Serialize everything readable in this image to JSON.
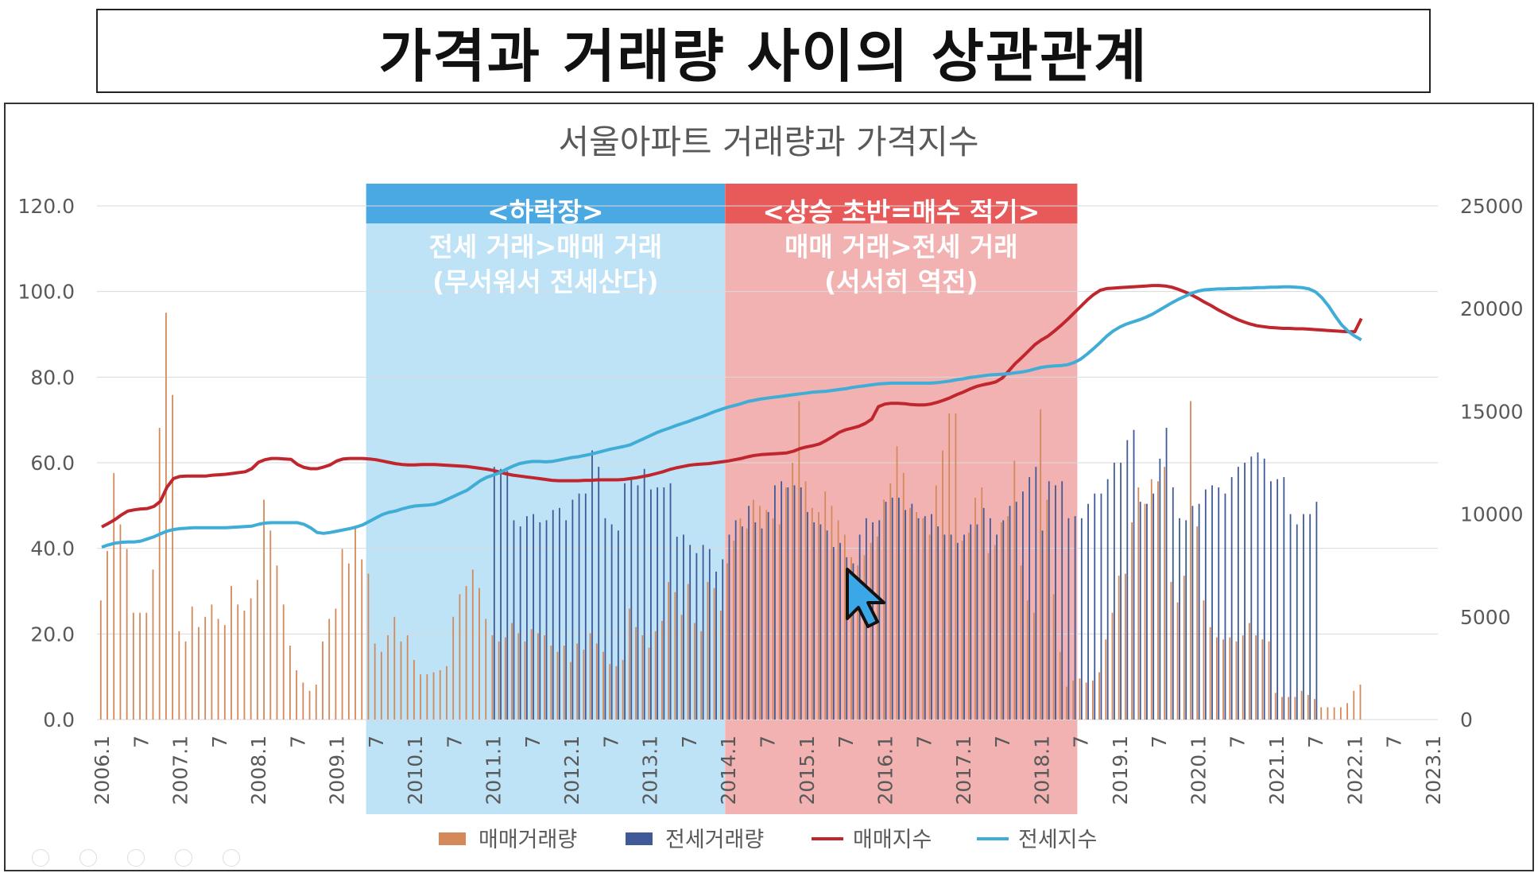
{
  "header": {
    "title": "가격과 거래량 사이의 상관관계"
  },
  "colors": {
    "sale_volume": "#D4895A",
    "jeonse_volume": "#3F5A96",
    "sale_index": "#C0262D",
    "jeonse_index": "#40ADD6",
    "falling_band_header": "#4AA8E2",
    "falling_band_body": "#BEE2F6",
    "rising_band_header": "#E85A5A",
    "rising_band_body": "#F3B2B2"
  },
  "icons": {
    "cursor": "mouse-pointer-icon"
  },
  "chart_data": {
    "type": "bar+line",
    "title": "서울아파트 거래량과 가격지수",
    "y_left": {
      "ylim": [
        0,
        120
      ],
      "ticks": [
        "0.0",
        "20.0",
        "40.0",
        "60.0",
        "80.0",
        "100.0",
        "120.0"
      ]
    },
    "y_right": {
      "ylim": [
        0,
        25000
      ],
      "ticks": [
        "0",
        "5000",
        "10000",
        "15000",
        "20000",
        "25000"
      ]
    },
    "x_start": "2006.1",
    "x_end": "2023.1",
    "x_tick_labels": [
      "2006.1",
      "7",
      "2007.1",
      "7",
      "2008.1",
      "7",
      "2009.1",
      "7",
      "2010.1",
      "7",
      "2011.1",
      "7",
      "2012.1",
      "7",
      "2013.1",
      "7",
      "2014.1",
      "7",
      "2015.1",
      "7",
      "2016.1",
      "7",
      "2017.1",
      "7",
      "2018.1",
      "7",
      "2019.1",
      "7",
      "2020.1",
      "7",
      "2021.1",
      "7",
      "2022.1",
      "7",
      "2023.1"
    ],
    "annotations": [
      {
        "id": "falling",
        "from": "2009.6",
        "to": "2013.12",
        "lines": [
          "<하락장>",
          "전세 거래>매매 거래",
          "(무서워서 전세산다)"
        ]
      },
      {
        "id": "rising",
        "from": "2014.1",
        "to": "2018.6",
        "lines": [
          "<상승 초반=매수 적기>",
          "매매 거래>전세 거래",
          "(서서히 역전)"
        ]
      }
    ],
    "legend": [
      "매매거래량",
      "전세거래량",
      "매매지수",
      "전세지수"
    ],
    "legend_position": "bottom",
    "series": [
      {
        "name": "매매거래량",
        "type": "bar",
        "axis": "right",
        "values": [
          5800,
          8200,
          12000,
          9500,
          8300,
          5200,
          5200,
          5200,
          7300,
          14200,
          19800,
          15800,
          4300,
          3800,
          5500,
          4500,
          5000,
          5600,
          4900,
          4600,
          6500,
          5600,
          5300,
          5900,
          6800,
          10700,
          9200,
          7500,
          5600,
          3600,
          2400,
          1800,
          1400,
          1700,
          3800,
          4900,
          5400,
          8300,
          7600,
          9400,
          7800,
          7100,
          3700,
          3300,
          4100,
          5000,
          3800,
          4100,
          2900,
          2200,
          2200,
          2300,
          2400,
          2600,
          5000,
          6100,
          6500,
          7300,
          6400,
          4900,
          4100,
          3800,
          4000,
          4700,
          4200,
          3800,
          4400,
          4200,
          4100,
          3600,
          3300,
          3600,
          2800,
          3700,
          3400,
          4200,
          3700,
          3300,
          2700,
          2600,
          2900,
          5400,
          4500,
          4100,
          3500,
          4300,
          4800,
          6700,
          6200,
          5100,
          6600,
          4700,
          4300,
          6700,
          6400,
          5300,
          7600,
          8700,
          9800,
          9300,
          10700,
          10400,
          10200,
          9800,
          9500,
          11300,
          12500,
          15500,
          11600,
          10300,
          10100,
          11100,
          10400,
          9700,
          9000,
          7900,
          7500,
          8000,
          8600,
          8900,
          10700,
          11500,
          13300,
          12000,
          10300,
          10100,
          9800,
          9000,
          11400,
          13100,
          14900,
          14900,
          8700,
          9100,
          10800,
          11300,
          8100,
          8500,
          9600,
          9900,
          12600,
          7500,
          5800,
          5200,
          15100,
          10700,
          6100,
          3300,
          1600,
          1900,
          2000,
          1800,
          1900,
          2300,
          3900,
          5200,
          7000,
          7100,
          9600,
          11300,
          10500,
          11700,
          11600,
          12300,
          6700,
          5700,
          7000,
          15500,
          9400,
          5800,
          4500,
          4000,
          3900,
          4000,
          3800,
          4100,
          4700,
          4100,
          3900,
          3800,
          1300,
          1100,
          1100,
          1100,
          1400,
          1200,
          1000,
          600,
          600,
          600,
          600,
          800,
          1400,
          1700
        ]
      },
      {
        "name": "전세거래량",
        "type": "bar",
        "axis": "right",
        "values": [
          0,
          0,
          0,
          0,
          0,
          0,
          0,
          0,
          0,
          0,
          0,
          0,
          0,
          0,
          0,
          0,
          0,
          0,
          0,
          0,
          0,
          0,
          0,
          0,
          0,
          0,
          0,
          0,
          0,
          0,
          0,
          0,
          0,
          0,
          0,
          0,
          0,
          0,
          0,
          0,
          0,
          0,
          0,
          0,
          0,
          0,
          0,
          0,
          0,
          0,
          0,
          0,
          0,
          0,
          0,
          0,
          0,
          0,
          0,
          0,
          12300,
          12200,
          12100,
          9700,
          9400,
          9900,
          10000,
          9600,
          9700,
          10200,
          10300,
          9700,
          10700,
          11000,
          11000,
          13100,
          12300,
          9800,
          9500,
          9200,
          11500,
          11700,
          11400,
          12200,
          11200,
          11300,
          11300,
          11500,
          8900,
          9000,
          8500,
          8100,
          8500,
          8300,
          7200,
          7800,
          9000,
          9700,
          9400,
          10400,
          9600,
          9300,
          10100,
          11400,
          11600,
          11300,
          11400,
          11300,
          10100,
          9600,
          9500,
          9200,
          8400,
          8600,
          7900,
          7600,
          9000,
          9800,
          9600,
          9700,
          10600,
          10800,
          10800,
          10200,
          10500,
          9800,
          9900,
          10000,
          9400,
          9000,
          9000,
          8600,
          9000,
          9500,
          9500,
          10300,
          9800,
          9000,
          9700,
          10400,
          10600,
          11100,
          11800,
          12300,
          9200,
          11600,
          11400,
          11600,
          9800,
          9900,
          9800,
          10500,
          11000,
          11000,
          11700,
          12500,
          12500,
          13600,
          14100,
          10600,
          10500,
          11000,
          12700,
          14200,
          11300,
          9800,
          9700,
          10400,
          10500,
          11200,
          11400,
          11300,
          11000,
          11800,
          12300,
          12500,
          12800,
          13000,
          12700,
          11600,
          11700,
          11800,
          10000,
          9500,
          10000,
          10000,
          10600
        ]
      },
      {
        "name": "매매지수",
        "type": "line",
        "axis": "left",
        "values": [
          45,
          45.8,
          46.7,
          47.8,
          48.7,
          49,
          49.2,
          49.3,
          49.8,
          51,
          54.3,
          56.3,
          56.8,
          56.9,
          56.9,
          56.9,
          56.9,
          57.1,
          57.2,
          57.3,
          57.5,
          57.7,
          57.9,
          58.6,
          60.1,
          60.7,
          61,
          61,
          60.9,
          60.8,
          59.6,
          58.9,
          58.6,
          58.6,
          59,
          59.5,
          60.4,
          60.9,
          61,
          61,
          61,
          60.9,
          60.7,
          60.4,
          60.1,
          59.8,
          59.6,
          59.5,
          59.5,
          59.6,
          59.6,
          59.6,
          59.5,
          59.4,
          59.3,
          59.2,
          59.1,
          58.9,
          58.7,
          58.5,
          58.2,
          57.8,
          57.4,
          57.1,
          56.9,
          56.7,
          56.5,
          56.3,
          56.1,
          55.9,
          55.8,
          55.8,
          55.8,
          55.8,
          55.9,
          55.9,
          56,
          56,
          56,
          56,
          56.1,
          56.3,
          56.5,
          56.8,
          57.1,
          57.5,
          57.9,
          58.4,
          58.8,
          59.1,
          59.4,
          59.6,
          59.7,
          59.8,
          60,
          60.2,
          60.4,
          60.7,
          61,
          61.4,
          61.7,
          61.9,
          62,
          62.1,
          62.2,
          62.3,
          62.7,
          63.3,
          63.7,
          64,
          64.4,
          65.2,
          66.1,
          67.1,
          67.7,
          68.1,
          68.5,
          69.2,
          70.2,
          73.1,
          73.7,
          73.9,
          73.9,
          73.8,
          73.6,
          73.5,
          73.5,
          73.7,
          74.1,
          74.6,
          75.2,
          75.9,
          76.5,
          77.2,
          77.8,
          78.2,
          78.5,
          78.9,
          79.8,
          81.5,
          83.2,
          84.6,
          86.1,
          87.6,
          88.7,
          89.6,
          90.8,
          92.1,
          93.5,
          95,
          96.5,
          98,
          99.3,
          100.3,
          100.7,
          100.8,
          100.9,
          101,
          101.1,
          101.2,
          101.3,
          101.4,
          101.4,
          101.3,
          101,
          100.5,
          99.9,
          99.2,
          98.4,
          97.5,
          96.7,
          95.8,
          95,
          94.2,
          93.5,
          92.9,
          92.4,
          92,
          91.8,
          91.6,
          91.5,
          91.4,
          91.4,
          91.3,
          91.3,
          91.2,
          91.1,
          91,
          90.9,
          90.8,
          90.7,
          90.6,
          90.6,
          93.7
        ]
      },
      {
        "name": "전세지수",
        "type": "line",
        "axis": "left",
        "values": [
          40.3,
          40.8,
          41.2,
          41.4,
          41.5,
          41.5,
          41.7,
          42.2,
          42.7,
          43.4,
          44,
          44.4,
          44.6,
          44.7,
          44.8,
          44.8,
          44.8,
          44.8,
          44.8,
          44.8,
          44.9,
          45,
          45.1,
          45.2,
          45.6,
          45.9,
          46,
          46,
          46,
          46,
          46,
          45.6,
          44.8,
          43.7,
          43.5,
          43.7,
          44,
          44.3,
          44.6,
          45,
          45.5,
          46.3,
          47.1,
          47.9,
          48.4,
          48.7,
          49.2,
          49.6,
          49.9,
          50,
          50.1,
          50.3,
          50.8,
          51.5,
          52.2,
          52.9,
          53.6,
          54.7,
          55.8,
          56.6,
          57.1,
          57.7,
          58.5,
          59.2,
          59.8,
          60.1,
          60.3,
          60.3,
          60.2,
          60.3,
          60.6,
          60.9,
          61.2,
          61.4,
          61.7,
          62,
          62.4,
          62.8,
          63.2,
          63.5,
          63.8,
          64.2,
          64.9,
          65.6,
          66.3,
          67,
          67.6,
          68.1,
          68.7,
          69.2,
          69.7,
          70.3,
          70.8,
          71.4,
          72,
          72.5,
          73,
          73.4,
          73.8,
          74.3,
          74.6,
          74.9,
          75.1,
          75.3,
          75.5,
          75.7,
          75.9,
          76.1,
          76.3,
          76.5,
          76.6,
          76.7,
          76.9,
          77.1,
          77.3,
          77.6,
          77.8,
          78,
          78.2,
          78.4,
          78.5,
          78.6,
          78.6,
          78.6,
          78.6,
          78.6,
          78.6,
          78.6,
          78.7,
          78.9,
          79.1,
          79.4,
          79.6,
          79.9,
          80.1,
          80.3,
          80.5,
          80.6,
          80.7,
          80.8,
          81,
          81.2,
          81.5,
          81.9,
          82.3,
          82.5,
          82.6,
          82.7,
          82.9,
          83.4,
          84.2,
          85.4,
          86.7,
          88.1,
          89.6,
          90.8,
          91.7,
          92.4,
          92.9,
          93.4,
          94,
          94.7,
          95.6,
          96.5,
          97.4,
          98.2,
          98.9,
          99.6,
          100.1,
          100.4,
          100.5,
          100.6,
          100.6,
          100.7,
          100.7,
          100.8,
          100.8,
          100.9,
          100.9,
          101,
          101,
          101.1,
          101.1,
          101,
          100.9,
          100.6,
          99.9,
          98.5,
          96.6,
          94.3,
          92.2,
          90.7,
          89.6,
          88.7
        ]
      }
    ]
  }
}
